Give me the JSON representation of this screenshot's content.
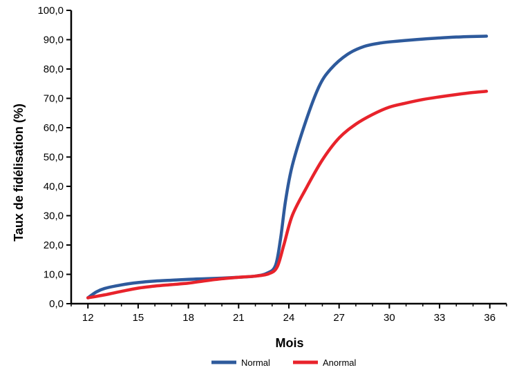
{
  "chart_data": {
    "type": "line",
    "xlabel": "Mois",
    "ylabel": "Taux de fidélisation (%)",
    "xlim": [
      11,
      37
    ],
    "ylim": [
      0,
      100
    ],
    "x_ticks": [
      12,
      15,
      18,
      21,
      24,
      27,
      30,
      33,
      36
    ],
    "x_tick_labels": [
      "12",
      "15",
      "18",
      "21",
      "24",
      "27",
      "30",
      "33",
      "36"
    ],
    "y_ticks": [
      0,
      10,
      20,
      30,
      40,
      50,
      60,
      70,
      80,
      90,
      100
    ],
    "y_tick_labels": [
      "0,0",
      "10,0",
      "20,0",
      "30,0",
      "40,0",
      "50,0",
      "60,0",
      "70,0",
      "80,0",
      "90,0",
      "100,0"
    ],
    "grid": false,
    "legend_position": "bottom",
    "series": [
      {
        "name": "Normal",
        "color": "#2e5a9c",
        "x": [
          12,
          12.5,
          13,
          14,
          15,
          16,
          17,
          18,
          19,
          20,
          21,
          22,
          22.7,
          23.2,
          23.5,
          23.8,
          24.2,
          25,
          25.8,
          26.5,
          27.5,
          28.5,
          29.5,
          30.5,
          32,
          34,
          35.8
        ],
        "y": [
          2,
          4,
          5.2,
          6.4,
          7.2,
          7.7,
          8,
          8.3,
          8.5,
          8.7,
          9,
          9.4,
          10.4,
          13,
          22,
          35,
          47,
          62,
          74,
          80,
          85,
          87.7,
          88.9,
          89.5,
          90.2,
          90.9,
          91.2
        ]
      },
      {
        "name": "Anormal",
        "color": "#e8232b",
        "x": [
          12,
          13,
          14,
          15,
          16,
          17,
          18,
          19,
          20,
          21,
          22,
          22.8,
          23.3,
          23.7,
          24.2,
          25,
          26,
          27,
          28,
          29,
          30,
          31,
          32,
          33,
          34,
          35,
          35.8
        ],
        "y": [
          2,
          3,
          4.2,
          5.3,
          6,
          6.5,
          7,
          7.8,
          8.5,
          9,
          9.4,
          10.2,
          12.5,
          20,
          30,
          39,
          49,
          56.5,
          61.2,
          64.5,
          67,
          68.4,
          69.6,
          70.5,
          71.3,
          72,
          72.4
        ]
      }
    ]
  }
}
